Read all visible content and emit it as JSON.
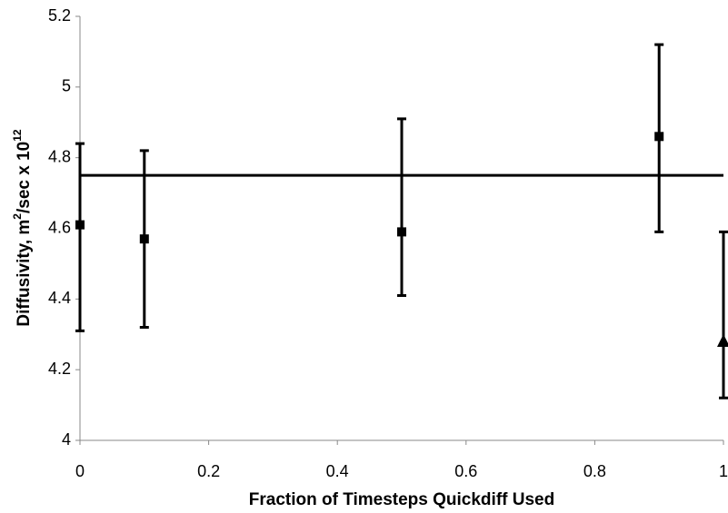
{
  "chart_data": {
    "type": "errorbar-scatter",
    "x_label": "Fraction of Timesteps Quickdiff Used",
    "y_label": [
      "Diffusivity, m",
      "2",
      "/sec x 10",
      "12"
    ],
    "xlim": [
      0,
      1
    ],
    "xticks": [
      0,
      0.2,
      0.4,
      0.6,
      0.8,
      1
    ],
    "ylim": [
      4,
      5.2
    ],
    "yticks": [
      4,
      4.2,
      4.4,
      4.6,
      4.8,
      5,
      5.2
    ],
    "reference_line": 4.75,
    "series": [
      {
        "marker": "square",
        "color": "#000000",
        "x": [
          0,
          0.1,
          0.5,
          0.9
        ],
        "values": [
          4.61,
          4.57,
          4.59,
          4.86
        ],
        "lower": [
          4.31,
          4.32,
          4.41,
          4.59
        ],
        "upper": [
          4.84,
          4.82,
          4.91,
          5.12
        ]
      },
      {
        "marker": "triangle",
        "color": "#000000",
        "x": [
          1
        ],
        "values": [
          4.28
        ],
        "lower": [
          4.12
        ],
        "upper": [
          4.59
        ]
      }
    ]
  }
}
